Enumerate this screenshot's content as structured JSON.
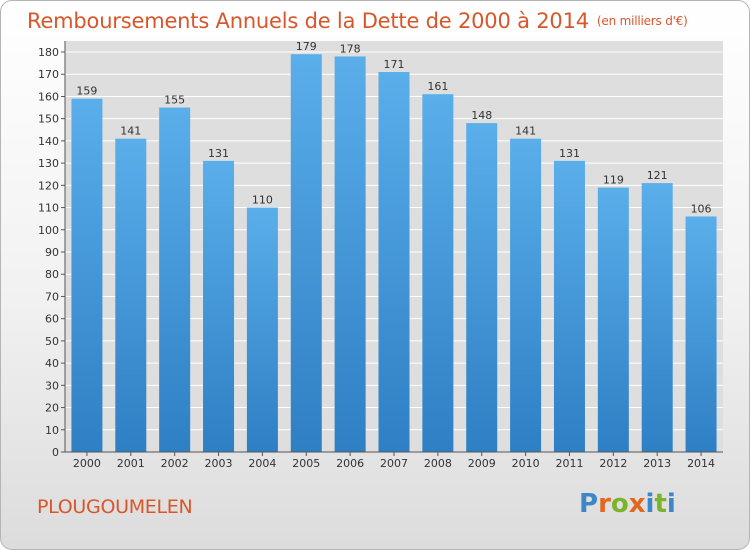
{
  "chart_data": {
    "type": "bar",
    "title": "Remboursements Annuels de la Dette de 2000 à 2014",
    "unit_label": "(en milliers d'€)",
    "categories": [
      "2000",
      "2001",
      "2002",
      "2003",
      "2004",
      "2005",
      "2006",
      "2007",
      "2008",
      "2009",
      "2010",
      "2011",
      "2012",
      "2013",
      "2014"
    ],
    "values": [
      159,
      141,
      155,
      131,
      110,
      179,
      178,
      171,
      161,
      148,
      141,
      131,
      119,
      121,
      106
    ],
    "ylim": [
      0,
      180
    ],
    "yticks": [
      0,
      10,
      20,
      30,
      40,
      50,
      60,
      70,
      80,
      90,
      100,
      110,
      120,
      130,
      140,
      150,
      160,
      170,
      180
    ],
    "grid": true,
    "xlabel": "",
    "ylabel": "",
    "bar_color_top": "#5aaeea",
    "bar_color_bottom": "#2e7fc4"
  },
  "footer": {
    "commune": "PLOUGOUMELEN",
    "logo_letters": [
      "P",
      "r",
      "o",
      "x",
      "i",
      "t",
      "i"
    ],
    "logo_colors": [
      "#3d86c7",
      "#e2681e",
      "#7ab42d",
      "#e2681e",
      "#3d86c7",
      "#7ab42d",
      "#3d86c7"
    ]
  },
  "colors": {
    "title": "#d9562a",
    "grid": "#ffffff"
  }
}
